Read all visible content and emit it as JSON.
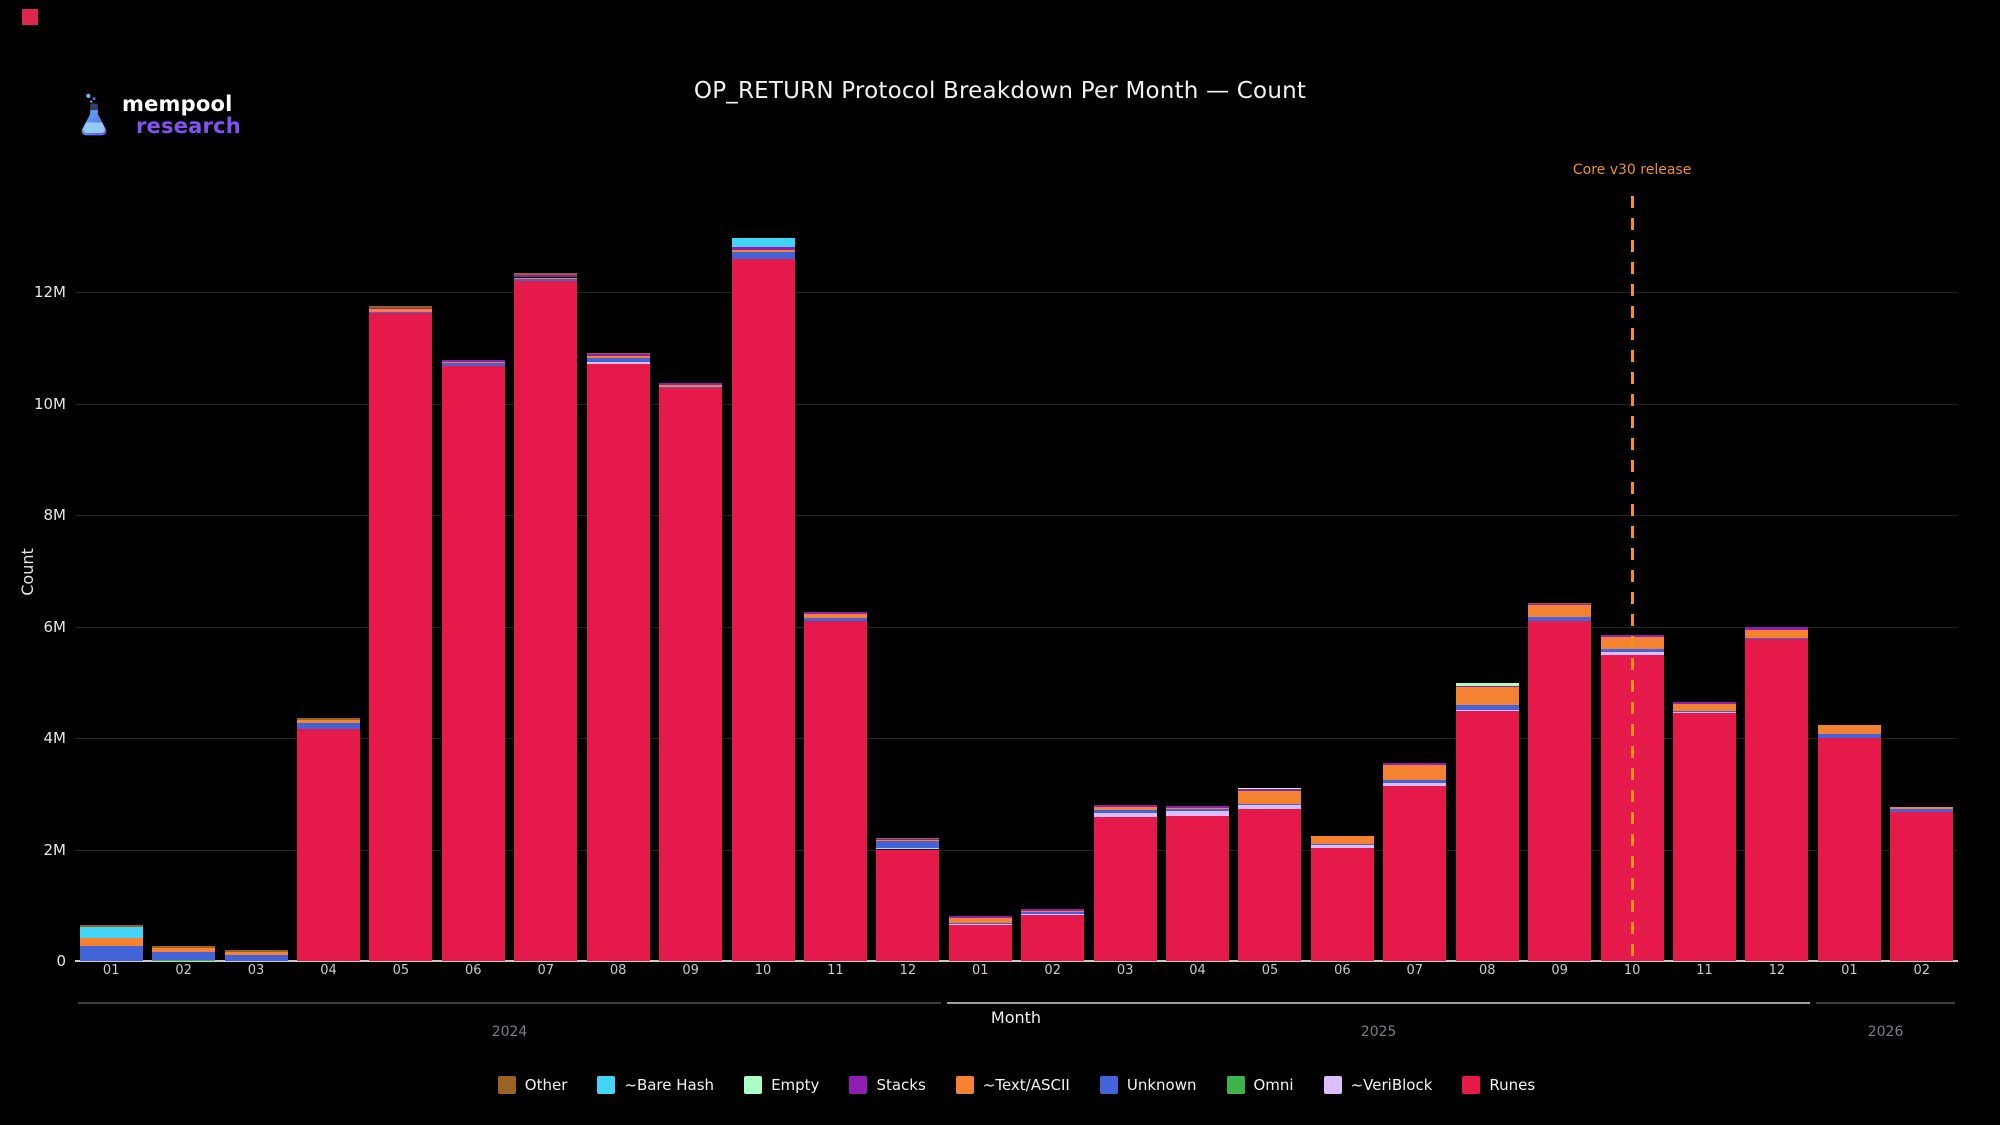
{
  "title": "OP_RETURN Protocol Breakdown Per Month — Count",
  "logo": {
    "line1": "mempool",
    "line2": "research",
    "research_color": "#8352f5"
  },
  "colors": {
    "background": "#000000",
    "corner_marker": "#e0254e",
    "annotation": "#f0921e",
    "year_line_2024": "#3f3f3f",
    "year_line_2025": "#a0a0a0",
    "year_line_2026": "#3f3f3f"
  },
  "annotation": {
    "text": "Core v30 release",
    "category_index": 21
  },
  "xaxis": {
    "title": "Month",
    "years": [
      {
        "label": "2024",
        "start": 0,
        "end": 11
      },
      {
        "label": "2025",
        "start": 12,
        "end": 23
      },
      {
        "label": "2026",
        "start": 24,
        "end": 25
      }
    ]
  },
  "yaxis": {
    "title": "Count",
    "ticks": [
      {
        "v": 0,
        "label": "0"
      },
      {
        "v": 2,
        "label": "2M"
      },
      {
        "v": 4,
        "label": "4M"
      },
      {
        "v": 6,
        "label": "6M"
      },
      {
        "v": 8,
        "label": "8M"
      },
      {
        "v": 10,
        "label": "10M"
      },
      {
        "v": 12,
        "label": "12M"
      }
    ]
  },
  "chart_data": {
    "type": "bar",
    "stacked": true,
    "title": "OP_RETURN Protocol Breakdown Per Month — Count",
    "xlabel": "Month",
    "ylabel": "Count",
    "ylim_millions": [
      0,
      14
    ],
    "grid": true,
    "legend_position": "bottom",
    "categories": [
      "01",
      "02",
      "03",
      "04",
      "05",
      "06",
      "07",
      "08",
      "09",
      "10",
      "11",
      "12",
      "01",
      "02",
      "03",
      "04",
      "05",
      "06",
      "07",
      "08",
      "09",
      "10",
      "11",
      "12",
      "01",
      "02"
    ],
    "category_years": [
      "2024",
      "2024",
      "2024",
      "2024",
      "2024",
      "2024",
      "2024",
      "2024",
      "2024",
      "2024",
      "2024",
      "2024",
      "2025",
      "2025",
      "2025",
      "2025",
      "2025",
      "2025",
      "2025",
      "2025",
      "2025",
      "2025",
      "2025",
      "2025",
      "2026",
      "2026"
    ],
    "units": "millions",
    "series": [
      {
        "name": "Other",
        "color": "#9A6324",
        "values": [
          0.03,
          0.04,
          0.04,
          0.04,
          0.03,
          0,
          0.04,
          0.02,
          0,
          0,
          0,
          0.01,
          0,
          0,
          0,
          0,
          0,
          0,
          0,
          0,
          0.03,
          0,
          0,
          0,
          0,
          0
        ]
      },
      {
        "name": "~Bare Hash",
        "color": "#42d4f4",
        "values": [
          0.2,
          0,
          0,
          0,
          0,
          0,
          0,
          0,
          0,
          0.17,
          0,
          0,
          0,
          0,
          0,
          0,
          0,
          0,
          0,
          0,
          0,
          0,
          0,
          0,
          0,
          0
        ]
      },
      {
        "name": "Empty",
        "color": "#aaffc3",
        "values": [
          0,
          0,
          0,
          0,
          0,
          0,
          0,
          0,
          0,
          0,
          0,
          0,
          0,
          0,
          0,
          0,
          0.02,
          0,
          0,
          0.04,
          0,
          0,
          0,
          0,
          0,
          0
        ]
      },
      {
        "name": "Stacks",
        "color": "#911eb4",
        "values": [
          0,
          0,
          0,
          0,
          0.03,
          0.03,
          0.04,
          0.02,
          0.03,
          0.05,
          0.04,
          0.01,
          0.03,
          0.03,
          0.04,
          0.05,
          0.03,
          0,
          0.04,
          0.03,
          0.02,
          0.04,
          0.03,
          0.05,
          0,
          0
        ]
      },
      {
        "name": "~Text/ASCII",
        "color": "#f58231",
        "values": [
          0.14,
          0.08,
          0.06,
          0.05,
          0.04,
          0.03,
          0.02,
          0.04,
          0.04,
          0.04,
          0.07,
          0.02,
          0.1,
          0.01,
          0.05,
          0.01,
          0.23,
          0.15,
          0.28,
          0.32,
          0.21,
          0.21,
          0.13,
          0.14,
          0.16,
          0.04
        ]
      },
      {
        "name": "Unknown",
        "color": "#4363d8",
        "values": [
          0.27,
          0.14,
          0.1,
          0.11,
          0.03,
          0.04,
          0.04,
          0.08,
          0.02,
          0.11,
          0.05,
          0.13,
          0.02,
          0.03,
          0.05,
          0.03,
          0.02,
          0.02,
          0.05,
          0.09,
          0.07,
          0.06,
          0.02,
          0.03,
          0.07,
          0.05
        ]
      },
      {
        "name": "Omni",
        "color": "#3cb44b",
        "values": [
          0,
          0.01,
          0,
          0,
          0,
          0,
          0,
          0,
          0,
          0,
          0,
          0,
          0,
          0,
          0,
          0,
          0,
          0,
          0,
          0,
          0,
          0,
          0,
          0,
          0,
          0
        ]
      },
      {
        "name": "~VeriBlock",
        "color": "#dcbeff",
        "values": [
          0,
          0,
          0,
          0,
          0,
          0,
          0,
          0.04,
          0,
          0,
          0,
          0.02,
          0.02,
          0.03,
          0.07,
          0.09,
          0.08,
          0.05,
          0.05,
          0.02,
          0,
          0.05,
          0.02,
          0,
          0,
          0
        ]
      },
      {
        "name": "Runes",
        "color": "#e6194b",
        "values": [
          0,
          0,
          0,
          4.16,
          11.62,
          10.68,
          12.2,
          10.7,
          10.28,
          12.6,
          6.1,
          2.0,
          0.64,
          0.82,
          2.59,
          2.6,
          2.72,
          2.03,
          3.14,
          4.48,
          6.1,
          5.49,
          4.44,
          5.77,
          4.0,
          2.68
        ]
      }
    ]
  }
}
